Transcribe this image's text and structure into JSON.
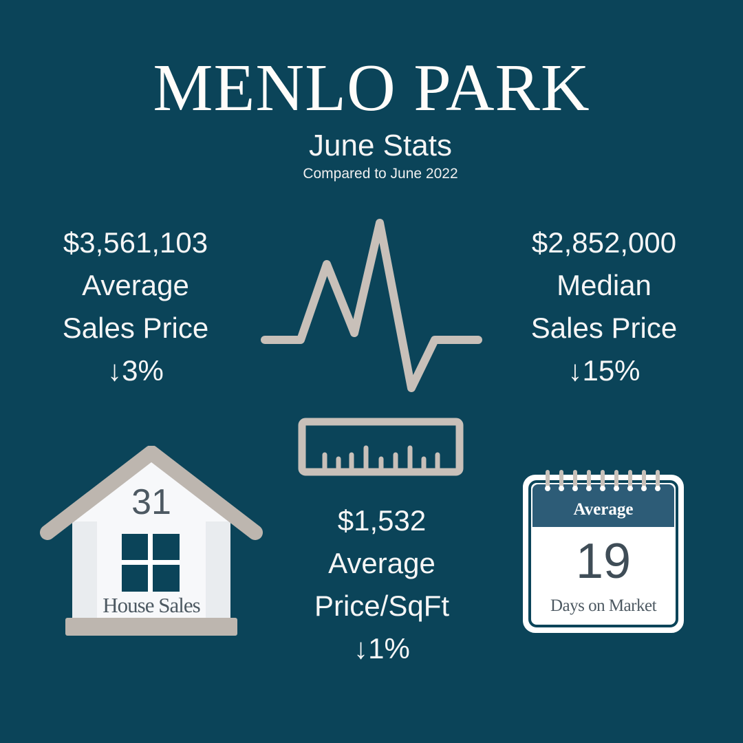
{
  "header": {
    "title": "MENLO PARK",
    "subtitle": "June Stats",
    "comparison": "Compared to June 2022"
  },
  "stats": {
    "average_sales_price": {
      "value": "$3,561,103",
      "label_line1": "Average",
      "label_line2": "Sales Price",
      "change": "↓3%"
    },
    "median_sales_price": {
      "value": "$2,852,000",
      "label_line1": "Median",
      "label_line2": "Sales Price",
      "change": "↓15%"
    },
    "average_price_sqft": {
      "value": "$1,532",
      "label_line1": "Average",
      "label_line2": "Price/SqFt",
      "change": "↓1%"
    }
  },
  "house": {
    "count": "31",
    "label": "House Sales"
  },
  "calendar": {
    "header": "Average",
    "value": "19",
    "label": "Days on Market"
  },
  "colors": {
    "background": "#0b4459",
    "icon_gray": "#c8c0b9",
    "calendar_header": "#2d5c77",
    "text": "#ffffff"
  },
  "icons": [
    "heartbeat-line-icon",
    "ruler-icon",
    "house-icon",
    "calendar-icon"
  ]
}
